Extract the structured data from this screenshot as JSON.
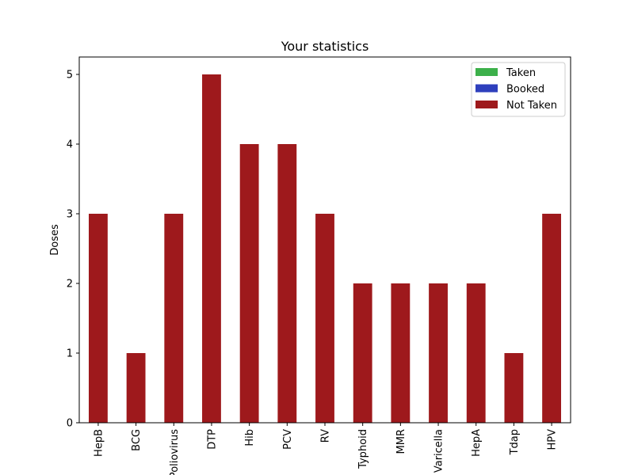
{
  "chart_data": {
    "type": "bar",
    "stacked": true,
    "title": "Your statistics",
    "xlabel": "",
    "ylabel": "Doses",
    "ylim": [
      0,
      5.25
    ],
    "yticks": [
      0,
      1,
      2,
      3,
      4,
      5
    ],
    "grid": false,
    "legend_position": "top-right",
    "categories": [
      "HepB",
      "BCG",
      "Poliovirus",
      "DTP",
      "Hib",
      "PCV",
      "RV",
      "Typhoid",
      "MMR",
      "Varicella",
      "HepA",
      "Tdap",
      "HPV"
    ],
    "series": [
      {
        "name": "Taken",
        "color": "#3cb04a",
        "values": [
          0,
          0,
          0,
          0,
          0,
          0,
          0,
          0,
          0,
          0,
          0,
          0,
          0
        ]
      },
      {
        "name": "Booked",
        "color": "#2e3fbd",
        "values": [
          0,
          0,
          0,
          0,
          0,
          0,
          0,
          0,
          0,
          0,
          0,
          0,
          0
        ]
      },
      {
        "name": "Not Taken",
        "color": "#9e191c",
        "values": [
          3,
          1,
          3,
          5,
          4,
          4,
          3,
          2,
          2,
          2,
          2,
          1,
          3
        ]
      }
    ]
  }
}
